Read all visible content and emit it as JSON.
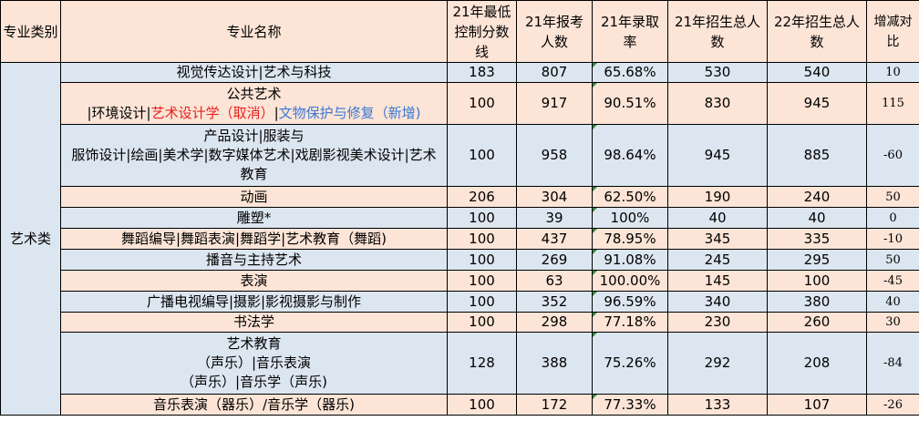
{
  "header": {
    "category": "专业类别",
    "major": "专业名称",
    "min_score": "21年最低控制分数线",
    "applicants": "21年报考人数",
    "rate": "21年录取率",
    "enroll21": "21年招生总人数",
    "enroll22": "22年招生总人数",
    "change": "增减对比"
  },
  "category_value": "艺术类",
  "rows": [
    {
      "major": "视觉传达设计|艺术与科技",
      "score": "183",
      "applicants": "807",
      "rate": "65.68%",
      "enroll21": "530",
      "enroll22": "540",
      "change": "10"
    },
    {
      "major_line1": "公共艺术",
      "major_p1": "|环境设计|",
      "major_p2": "艺术设计学（取消）",
      "major_p3": "|",
      "major_p4": "文物保护与修复（新增)",
      "score": "100",
      "applicants": "917",
      "rate": "90.51%",
      "enroll21": "830",
      "enroll22": "945",
      "change": "115"
    },
    {
      "major_l1": "产品设计|服装与",
      "major_l2": "服饰设计|绘画|美术学|数字媒体艺术|戏剧影视美术设计|艺术",
      "major_l3": "教育",
      "score": "100",
      "applicants": "958",
      "rate": "98.64%",
      "enroll21": "945",
      "enroll22": "885",
      "change": "-60"
    },
    {
      "major": "动画",
      "score": "206",
      "applicants": "304",
      "rate": "62.50%",
      "enroll21": "190",
      "enroll22": "240",
      "change": "50"
    },
    {
      "major": "雕塑*",
      "score": "100",
      "applicants": "39",
      "rate": "100%",
      "enroll21": "40",
      "enroll22": "40",
      "change": "0"
    },
    {
      "major": "舞蹈编导|舞蹈表演|舞蹈学|艺术教育（舞蹈)",
      "score": "100",
      "applicants": "437",
      "rate": "78.95%",
      "enroll21": "345",
      "enroll22": "335",
      "change": "-10"
    },
    {
      "major": "播音与主持艺术",
      "score": "100",
      "applicants": "269",
      "rate": "91.08%",
      "enroll21": "245",
      "enroll22": "295",
      "change": "50"
    },
    {
      "major": "表演",
      "score": "100",
      "applicants": "63",
      "rate": "100.00%",
      "enroll21": "145",
      "enroll22": "100",
      "change": "-45"
    },
    {
      "major": "广播电视编导|摄影|影视摄影与制作",
      "score": "100",
      "applicants": "352",
      "rate": "96.59%",
      "enroll21": "340",
      "enroll22": "380",
      "change": "40"
    },
    {
      "major": "书法学",
      "score": "100",
      "applicants": "298",
      "rate": "77.18%",
      "enroll21": "230",
      "enroll22": "260",
      "change": "30"
    },
    {
      "major_l1": "艺术教育",
      "major_l2": "（声乐）|音乐表演",
      "major_l3": "（声乐）|音乐学（声乐)",
      "score": "128",
      "applicants": "388",
      "rate": "75.26%",
      "enroll21": "292",
      "enroll22": "208",
      "change": "-84"
    },
    {
      "major": "音乐表演（器乐）/音乐学（器乐)",
      "score": "100",
      "applicants": "172",
      "rate": "77.33%",
      "enroll21": "133",
      "enroll22": "107",
      "change": "-26"
    }
  ]
}
